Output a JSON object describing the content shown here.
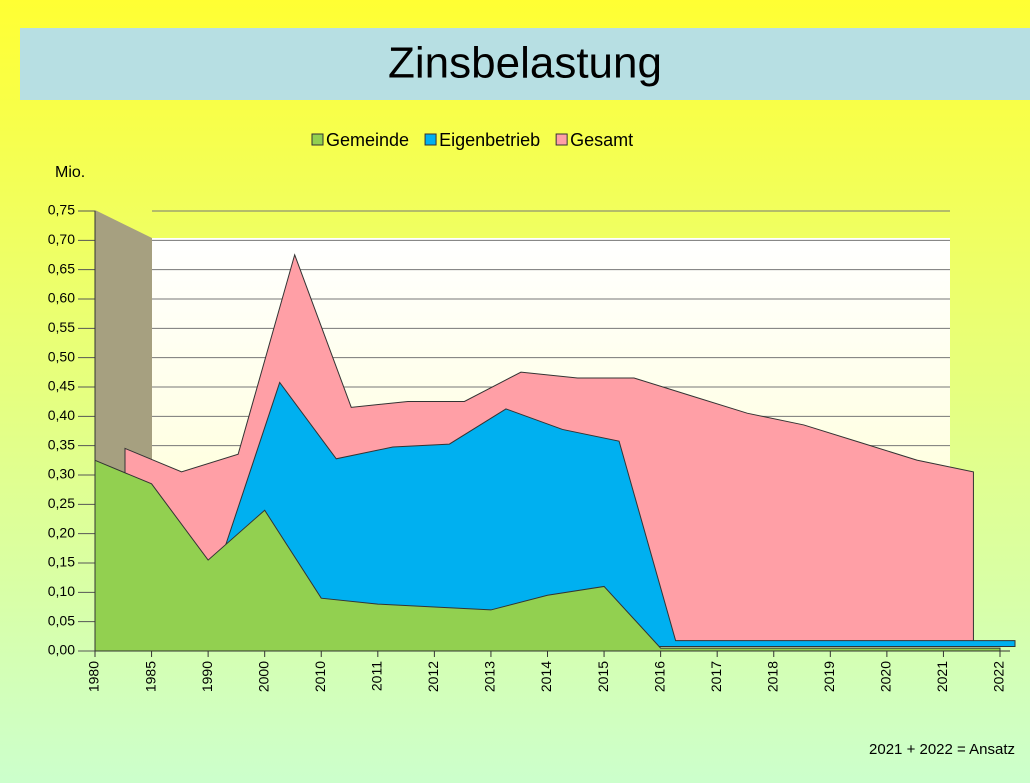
{
  "chart_data": {
    "type": "area",
    "title": "Zinsbelastung",
    "y_axis_label": "Mio.",
    "footnote": "2021 + 2022 = Ansatz",
    "categories": [
      "1980",
      "1985",
      "1990",
      "2000",
      "2010",
      "2011",
      "2012",
      "2013",
      "2014",
      "2015",
      "2016",
      "2017",
      "2018",
      "2019",
      "2020",
      "2021",
      "2022"
    ],
    "series": [
      {
        "name": "Gemeinde",
        "color": "#92d050",
        "values": [
          0.325,
          0.285,
          0.155,
          0.24,
          0.09,
          0.08,
          0.075,
          0.07,
          0.095,
          0.11,
          0.005,
          0.005,
          0.005,
          0.005,
          0.005,
          0.005,
          0.005
        ]
      },
      {
        "name": "Eigenbetrieb",
        "color": "#00b0f0",
        "values": [
          0,
          0,
          0.16,
          0.45,
          0.32,
          0.34,
          0.345,
          0.405,
          0.37,
          0.35,
          0.01,
          0.01,
          0.01,
          0.01,
          0.01,
          0.01,
          0.01
        ]
      },
      {
        "name": "Gesamt",
        "color": "#ff9fa6",
        "values": [
          0.33,
          0.29,
          0.32,
          0.66,
          0.4,
          0.41,
          0.41,
          0.46,
          0.45,
          0.45,
          0.42,
          0.39,
          0.37,
          0.34,
          0.31,
          0.29,
          null
        ]
      }
    ],
    "ylim": [
      0,
      0.75
    ],
    "yticks": [
      {
        "value": 0,
        "label": "0,00"
      },
      {
        "value": 0.05,
        "label": "0,05"
      },
      {
        "value": 0.1,
        "label": "0,10"
      },
      {
        "value": 0.15,
        "label": "0,15"
      },
      {
        "value": 0.2,
        "label": "0,20"
      },
      {
        "value": 0.25,
        "label": "0,25"
      },
      {
        "value": 0.3,
        "label": "0,30"
      },
      {
        "value": 0.35,
        "label": "0,35"
      },
      {
        "value": 0.4,
        "label": "0,40"
      },
      {
        "value": 0.45,
        "label": "0,45"
      },
      {
        "value": 0.5,
        "label": "0,50"
      },
      {
        "value": 0.55,
        "label": "0,55"
      },
      {
        "value": 0.6,
        "label": "0,60"
      },
      {
        "value": 0.65,
        "label": "0,65"
      },
      {
        "value": 0.7,
        "label": "0,70"
      },
      {
        "value": 0.75,
        "label": "0,75"
      }
    ],
    "grid": true,
    "legend": "top"
  }
}
